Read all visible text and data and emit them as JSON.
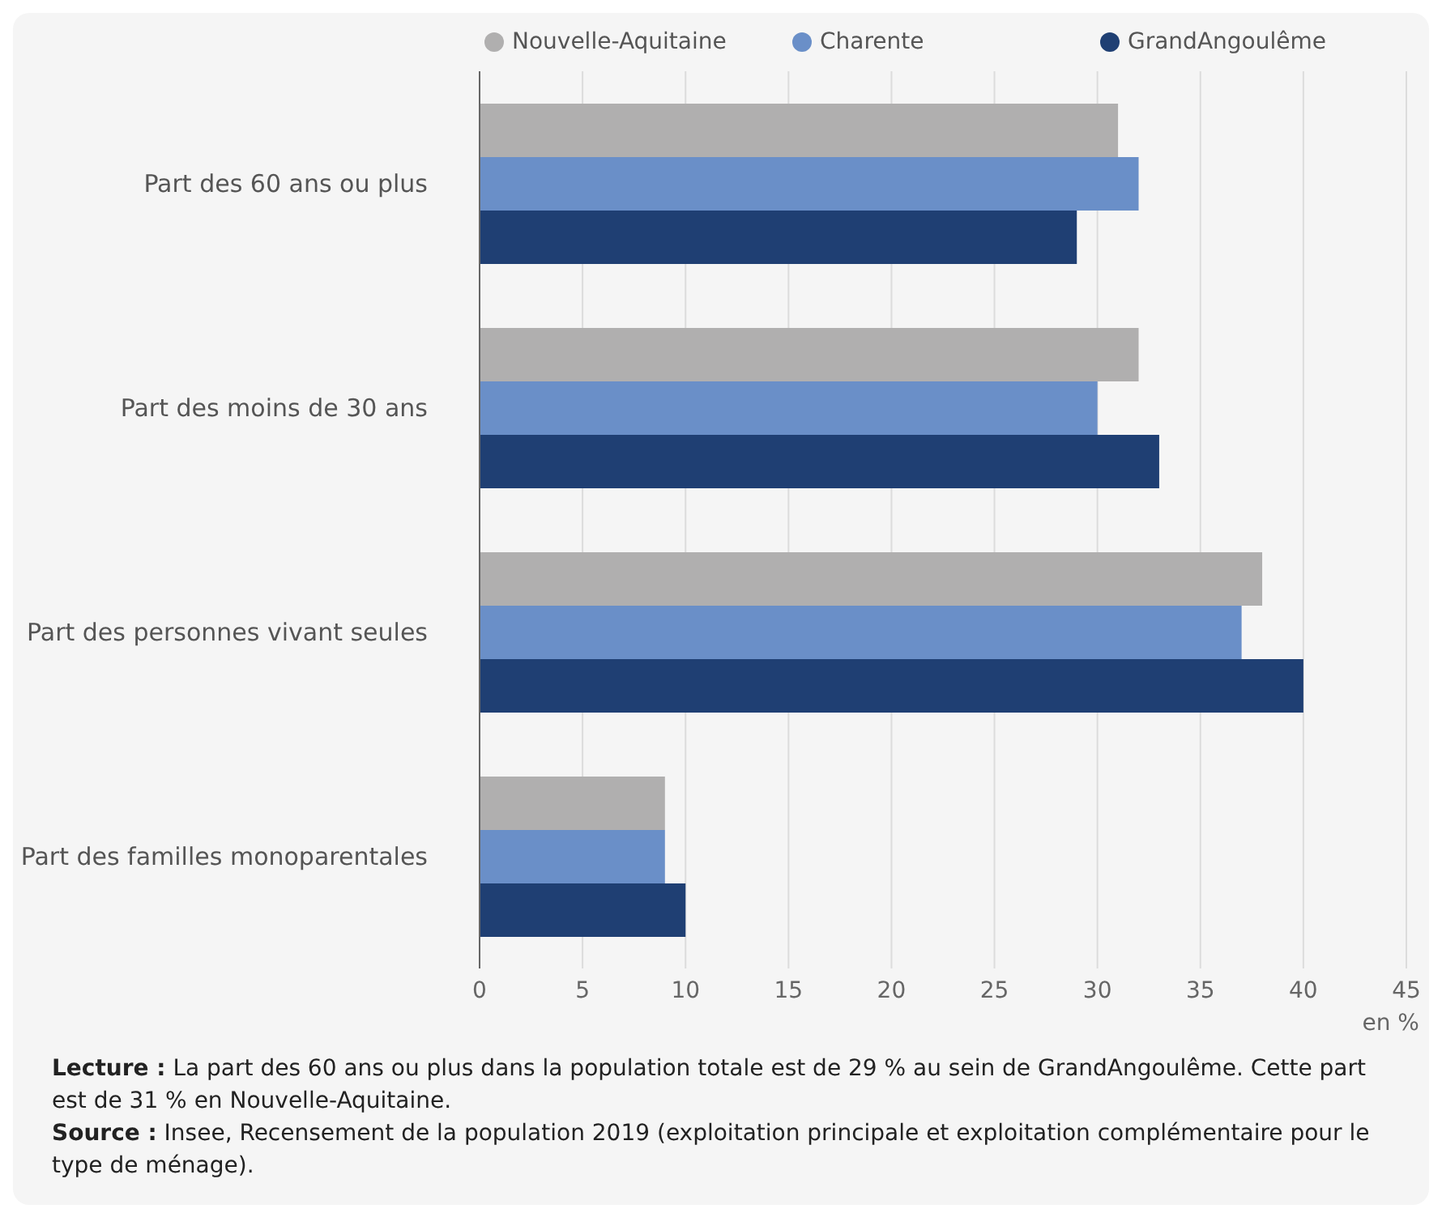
{
  "chart_data": {
    "type": "bar",
    "orientation": "horizontal",
    "categories": [
      "Part des 60 ans ou plus",
      "Part des moins de 30 ans",
      "Part des personnes vivant seules",
      "Part des familles monoparentales"
    ],
    "series": [
      {
        "name": "Nouvelle-Aquitaine",
        "color": "#b0afaf",
        "values": [
          31,
          32,
          38,
          9
        ]
      },
      {
        "name": "Charente",
        "color": "#6a8fc8",
        "values": [
          32,
          30,
          37,
          9
        ]
      },
      {
        "name": "GrandAngoulême",
        "color": "#1f3f73",
        "values": [
          29,
          33,
          40,
          10
        ]
      }
    ],
    "xlabel": "en %",
    "xlim": [
      0,
      45
    ],
    "xticks": [
      0,
      5,
      10,
      15,
      20,
      25,
      30,
      35,
      40,
      45
    ],
    "grid": "x",
    "legend": "top",
    "annotations": [
      "Lecture : La part des 60 ans ou plus dans la population totale est de 29 % au sein de GrandAngoulême. Cette part est de 31 % en Nouvelle-Aquitaine.",
      "Source : Insee, Recensement de la population 2019 (exploitation principale et exploitation complémentaire pour le type de ménage)."
    ]
  }
}
